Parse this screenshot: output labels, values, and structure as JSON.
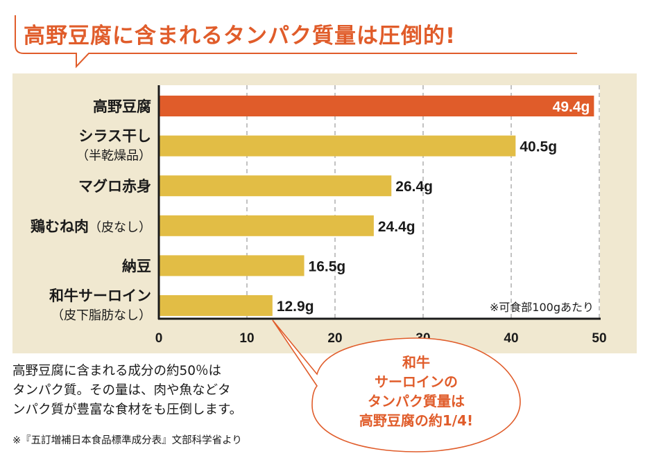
{
  "header": {
    "title": "高野豆腐に含まれるタンパク質量は圧倒的!"
  },
  "colors": {
    "accent": "#e05c2a",
    "bar_default": "#e2bd45",
    "panel_bg": "#f0e8d0",
    "plot_bg": "#ffffff",
    "text": "#1a1a1a"
  },
  "chart_data": {
    "type": "bar",
    "orientation": "horizontal",
    "title": "高野豆腐に含まれるタンパク質量は圧倒的!",
    "categories": [
      {
        "main": "高野豆腐",
        "sub": ""
      },
      {
        "main": "シラス干し",
        "sub": "（半乾燥品）"
      },
      {
        "main": "マグロ赤身",
        "sub": ""
      },
      {
        "main": "鶏むね肉",
        "sub": "（皮なし）",
        "sub_inline": true
      },
      {
        "main": "納豆",
        "sub": ""
      },
      {
        "main": "和牛サーロイン",
        "sub": "（皮下脂肪なし）"
      }
    ],
    "values": [
      49.4,
      40.5,
      26.4,
      24.4,
      16.5,
      12.9
    ],
    "value_labels": [
      "49.4g",
      "40.5g",
      "26.4g",
      "24.4g",
      "16.5g",
      "12.9g"
    ],
    "highlight_index": 0,
    "unit": "g",
    "xlabel": "",
    "ylabel": "",
    "xlim": [
      0,
      50
    ],
    "xticks": [
      0,
      10,
      20,
      30,
      40,
      50
    ],
    "grid": "vertical dashed",
    "note": "※可食部100gあたり"
  },
  "callout": {
    "lines": [
      "和牛",
      "サーロインの",
      "タンパク質量は",
      "高野豆腐の約1/4!"
    ],
    "points_to_index": 5
  },
  "description": {
    "lines": [
      "高野豆腐に含まれる成分の約50％は",
      "タンパク質。その量は、肉や魚などタ",
      "ンパク質が豊富な食材をも圧倒します。"
    ],
    "source": "※『五訂増補日本食品標準成分表』文部科学省より"
  }
}
